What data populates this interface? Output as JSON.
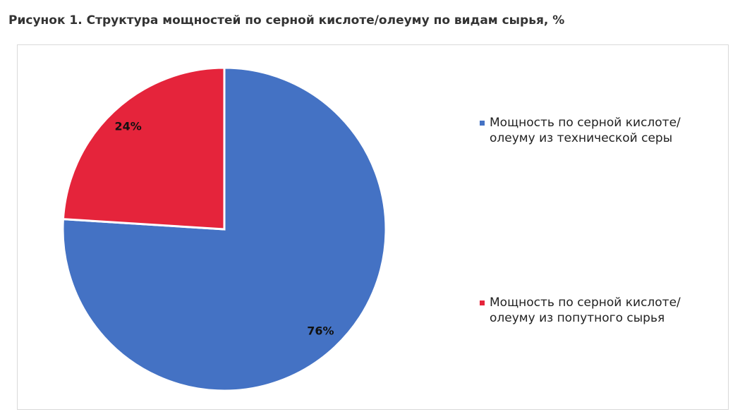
{
  "chart_data": {
    "type": "pie",
    "title": "Рисунок 1. Структура мощностей по серной кислоте/олеуму по видам сырья, %",
    "categories": [
      "Мощность по серной кислоте/олеуму из технической серы",
      "Мощность по серной кислоте/олеуму из попутного сырья"
    ],
    "values": [
      76,
      24
    ],
    "value_labels": [
      "76%",
      "24%"
    ],
    "colors": [
      "#4472c4",
      "#e5243b"
    ]
  }
}
